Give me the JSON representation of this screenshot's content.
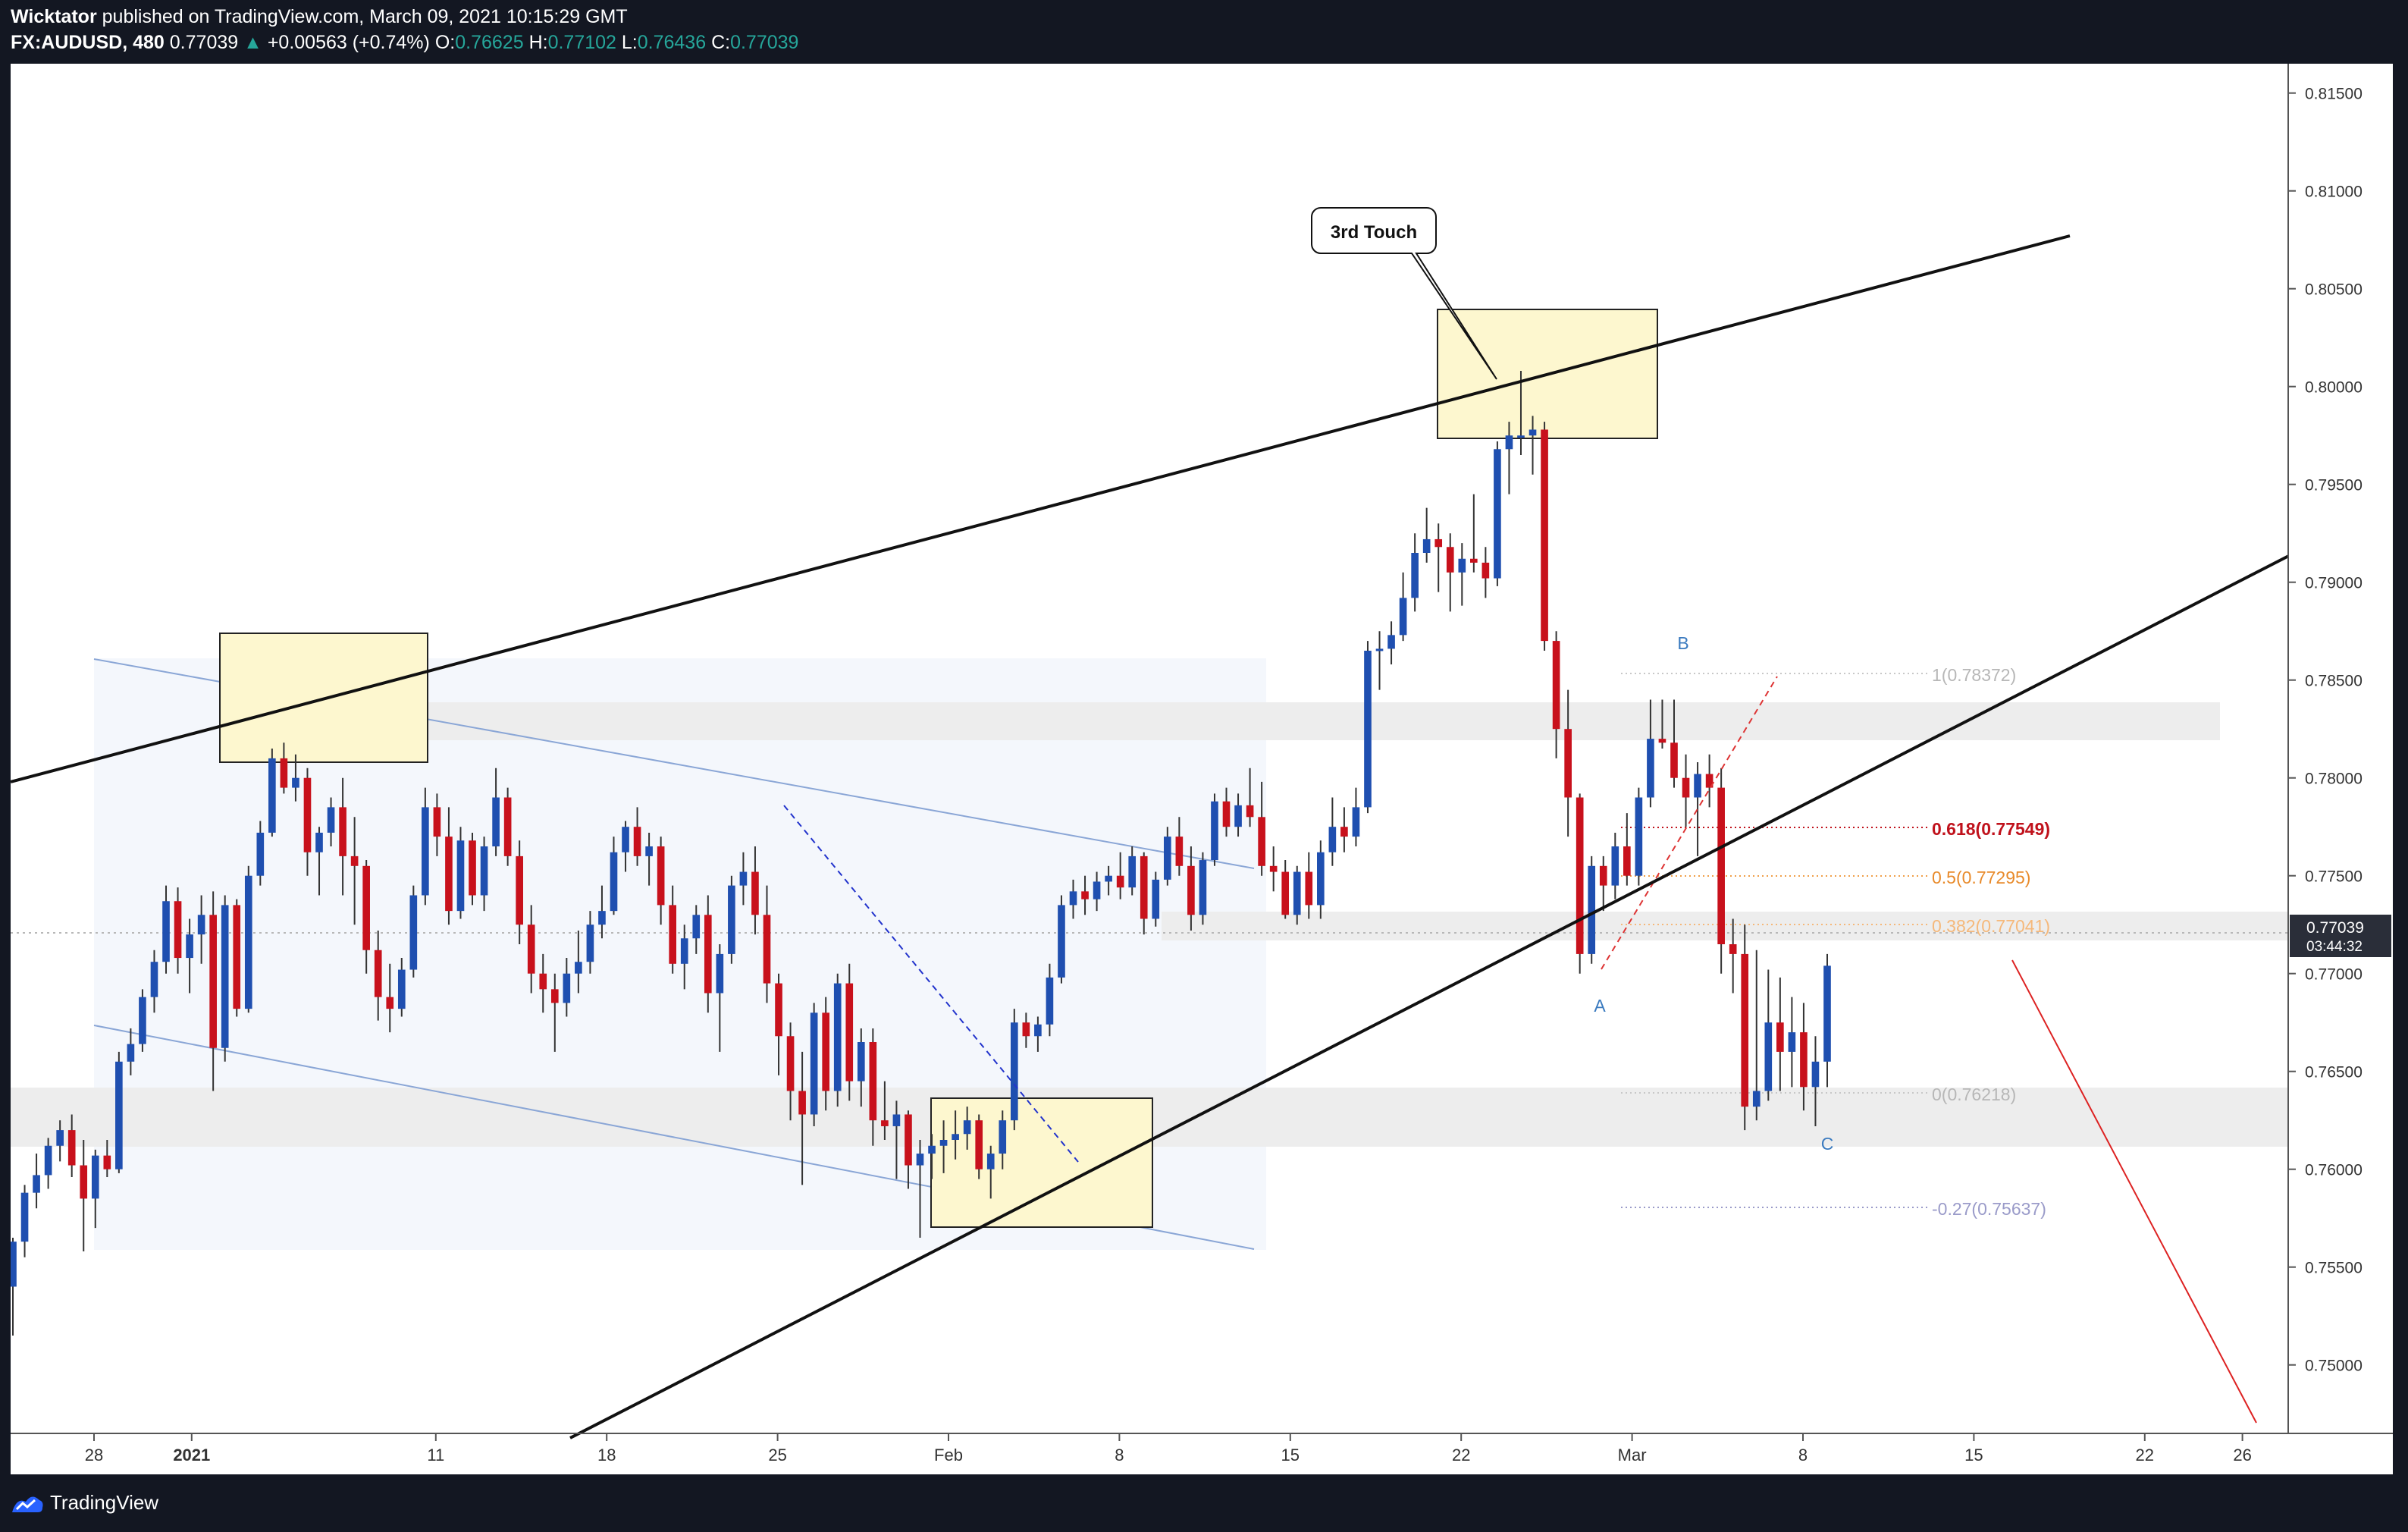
{
  "header": {
    "author": "Wicktator",
    "published": "published on TradingView.com, March 09, 2021 10:15:29 GMT",
    "symbol": "FX:AUDUSD, 480",
    "last": "0.77039",
    "arrow": "▲",
    "change": "+0.00563 (+0.74%)",
    "o_label": "O:",
    "o_value": "0.76625",
    "h_label": "H:",
    "h_value": "0.77102",
    "l_label": "L:",
    "l_value": "0.76436",
    "c_label": "C:",
    "c_value": "0.77039"
  },
  "footer": {
    "brand": "TradingView"
  },
  "colors": {
    "bull": "#1f4fb0",
    "bear": "#c8111c",
    "background": "#ffffff",
    "frame": "#131722",
    "zone": "#fdf7cf",
    "fib_618": "#c0121c",
    "fib_05": "#f0a04a",
    "fib_0382": "#f5b87a",
    "fib_neutral": "#b7b7b7",
    "fib_ext": "#9a9bc9",
    "wave_label": "#3a7abf"
  },
  "chart_data": {
    "type": "candlestick",
    "symbol": "FX:AUDUSD",
    "interval": "480",
    "y_range": [
      0.7465,
      0.8165
    ],
    "y_ticks": [
      "0.75000",
      "0.75500",
      "0.76000",
      "0.76500",
      "0.77000",
      "0.77500",
      "0.78000",
      "0.78500",
      "0.79000",
      "0.79500",
      "0.80000",
      "0.80500",
      "0.81000",
      "0.81500"
    ],
    "x_ticks": [
      {
        "label": "28",
        "date": "2020-12-28"
      },
      {
        "label": "2021",
        "date": "2021-01-01"
      },
      {
        "label": "11",
        "date": "2021-01-11"
      },
      {
        "label": "18",
        "date": "2021-01-18"
      },
      {
        "label": "25",
        "date": "2021-01-25"
      },
      {
        "label": "Feb",
        "date": "2021-02-01"
      },
      {
        "label": "8",
        "date": "2021-02-08"
      },
      {
        "label": "15",
        "date": "2021-02-15"
      },
      {
        "label": "22",
        "date": "2021-02-22"
      },
      {
        "label": "Mar",
        "date": "2021-03-01"
      },
      {
        "label": "8",
        "date": "2021-03-08"
      },
      {
        "label": "15",
        "date": "2021-03-15"
      },
      {
        "label": "22",
        "date": "2021-03-22"
      },
      {
        "label": "26",
        "date": "2021-03-26"
      }
    ],
    "last_price": "0.77039",
    "countdown": "03:44:32",
    "annotations": {
      "callout": "3rd Touch",
      "waves": [
        "A",
        "B",
        "C"
      ]
    },
    "fib_levels": [
      {
        "label": "1(0.78372)",
        "price": 0.78372
      },
      {
        "label": "0.618(0.77549)",
        "price": 0.77549
      },
      {
        "label": "0.5(0.77295)",
        "price": 0.77295
      },
      {
        "label": "0.382(0.77041)",
        "price": 0.77041
      },
      {
        "label": "0(0.76218)",
        "price": 0.76218
      },
      {
        "label": "-0.27(0.75637)",
        "price": 0.75637
      }
    ],
    "candles": [
      {
        "o": 0.754,
        "h": 0.7565,
        "l": 0.7515,
        "c": 0.7563
      },
      {
        "o": 0.7563,
        "h": 0.7592,
        "l": 0.7555,
        "c": 0.7588
      },
      {
        "o": 0.7588,
        "h": 0.7608,
        "l": 0.758,
        "c": 0.7597
      },
      {
        "o": 0.7597,
        "h": 0.7616,
        "l": 0.759,
        "c": 0.7612
      },
      {
        "o": 0.7612,
        "h": 0.7625,
        "l": 0.7604,
        "c": 0.762
      },
      {
        "o": 0.762,
        "h": 0.7628,
        "l": 0.7596,
        "c": 0.7602
      },
      {
        "o": 0.7602,
        "h": 0.7615,
        "l": 0.7558,
        "c": 0.7585
      },
      {
        "o": 0.7585,
        "h": 0.761,
        "l": 0.757,
        "c": 0.7607
      },
      {
        "o": 0.7607,
        "h": 0.7615,
        "l": 0.7596,
        "c": 0.76
      },
      {
        "o": 0.76,
        "h": 0.766,
        "l": 0.7598,
        "c": 0.7655
      },
      {
        "o": 0.7655,
        "h": 0.7672,
        "l": 0.7648,
        "c": 0.7664
      },
      {
        "o": 0.7664,
        "h": 0.7692,
        "l": 0.766,
        "c": 0.7688
      },
      {
        "o": 0.7688,
        "h": 0.7712,
        "l": 0.768,
        "c": 0.7706
      },
      {
        "o": 0.7706,
        "h": 0.7745,
        "l": 0.77,
        "c": 0.7737
      },
      {
        "o": 0.7737,
        "h": 0.7744,
        "l": 0.77,
        "c": 0.7708
      },
      {
        "o": 0.7708,
        "h": 0.7728,
        "l": 0.769,
        "c": 0.772
      },
      {
        "o": 0.772,
        "h": 0.774,
        "l": 0.7705,
        "c": 0.773
      },
      {
        "o": 0.773,
        "h": 0.7742,
        "l": 0.764,
        "c": 0.7662
      },
      {
        "o": 0.7662,
        "h": 0.774,
        "l": 0.7655,
        "c": 0.7735
      },
      {
        "o": 0.7735,
        "h": 0.7738,
        "l": 0.7678,
        "c": 0.7682
      },
      {
        "o": 0.7682,
        "h": 0.7755,
        "l": 0.768,
        "c": 0.775
      },
      {
        "o": 0.775,
        "h": 0.7778,
        "l": 0.7745,
        "c": 0.7772
      },
      {
        "o": 0.7772,
        "h": 0.7815,
        "l": 0.777,
        "c": 0.781
      },
      {
        "o": 0.781,
        "h": 0.7818,
        "l": 0.7792,
        "c": 0.7795
      },
      {
        "o": 0.7795,
        "h": 0.7812,
        "l": 0.7788,
        "c": 0.78
      },
      {
        "o": 0.78,
        "h": 0.7805,
        "l": 0.775,
        "c": 0.7762
      },
      {
        "o": 0.7762,
        "h": 0.7775,
        "l": 0.774,
        "c": 0.7772
      },
      {
        "o": 0.7772,
        "h": 0.779,
        "l": 0.7765,
        "c": 0.7785
      },
      {
        "o": 0.7785,
        "h": 0.78,
        "l": 0.774,
        "c": 0.776
      },
      {
        "o": 0.776,
        "h": 0.778,
        "l": 0.7725,
        "c": 0.7755
      },
      {
        "o": 0.7755,
        "h": 0.7758,
        "l": 0.77,
        "c": 0.7712
      },
      {
        "o": 0.7712,
        "h": 0.7722,
        "l": 0.7676,
        "c": 0.7688
      },
      {
        "o": 0.7688,
        "h": 0.7705,
        "l": 0.767,
        "c": 0.7682
      },
      {
        "o": 0.7682,
        "h": 0.7708,
        "l": 0.7678,
        "c": 0.7702
      },
      {
        "o": 0.7702,
        "h": 0.7745,
        "l": 0.7698,
        "c": 0.774
      },
      {
        "o": 0.774,
        "h": 0.7795,
        "l": 0.7735,
        "c": 0.7785
      },
      {
        "o": 0.7785,
        "h": 0.7792,
        "l": 0.776,
        "c": 0.777
      },
      {
        "o": 0.777,
        "h": 0.7785,
        "l": 0.7725,
        "c": 0.7732
      },
      {
        "o": 0.7732,
        "h": 0.7775,
        "l": 0.7728,
        "c": 0.7768
      },
      {
        "o": 0.7768,
        "h": 0.7772,
        "l": 0.7735,
        "c": 0.774
      },
      {
        "o": 0.774,
        "h": 0.777,
        "l": 0.7732,
        "c": 0.7765
      },
      {
        "o": 0.7765,
        "h": 0.7805,
        "l": 0.776,
        "c": 0.779
      },
      {
        "o": 0.779,
        "h": 0.7795,
        "l": 0.7755,
        "c": 0.776
      },
      {
        "o": 0.776,
        "h": 0.7768,
        "l": 0.7715,
        "c": 0.7725
      },
      {
        "o": 0.7725,
        "h": 0.7735,
        "l": 0.769,
        "c": 0.77
      },
      {
        "o": 0.77,
        "h": 0.771,
        "l": 0.768,
        "c": 0.7692
      },
      {
        "o": 0.7692,
        "h": 0.77,
        "l": 0.766,
        "c": 0.7685
      },
      {
        "o": 0.7685,
        "h": 0.7708,
        "l": 0.7678,
        "c": 0.77
      },
      {
        "o": 0.77,
        "h": 0.7722,
        "l": 0.769,
        "c": 0.7706
      },
      {
        "o": 0.7706,
        "h": 0.7732,
        "l": 0.77,
        "c": 0.7725
      },
      {
        "o": 0.7725,
        "h": 0.7745,
        "l": 0.7718,
        "c": 0.7732
      },
      {
        "o": 0.7732,
        "h": 0.777,
        "l": 0.773,
        "c": 0.7762
      },
      {
        "o": 0.7762,
        "h": 0.7778,
        "l": 0.7752,
        "c": 0.7775
      },
      {
        "o": 0.7775,
        "h": 0.7785,
        "l": 0.7755,
        "c": 0.776
      },
      {
        "o": 0.776,
        "h": 0.7772,
        "l": 0.7745,
        "c": 0.7765
      },
      {
        "o": 0.7765,
        "h": 0.777,
        "l": 0.7725,
        "c": 0.7735
      },
      {
        "o": 0.7735,
        "h": 0.7745,
        "l": 0.77,
        "c": 0.7705
      },
      {
        "o": 0.7705,
        "h": 0.7725,
        "l": 0.7692,
        "c": 0.7718
      },
      {
        "o": 0.7718,
        "h": 0.7735,
        "l": 0.771,
        "c": 0.773
      },
      {
        "o": 0.773,
        "h": 0.774,
        "l": 0.768,
        "c": 0.769
      },
      {
        "o": 0.769,
        "h": 0.7715,
        "l": 0.766,
        "c": 0.771
      },
      {
        "o": 0.771,
        "h": 0.775,
        "l": 0.7705,
        "c": 0.7745
      },
      {
        "o": 0.7745,
        "h": 0.7762,
        "l": 0.7735,
        "c": 0.7752
      },
      {
        "o": 0.7752,
        "h": 0.7765,
        "l": 0.772,
        "c": 0.773
      },
      {
        "o": 0.773,
        "h": 0.7745,
        "l": 0.7685,
        "c": 0.7695
      },
      {
        "o": 0.7695,
        "h": 0.77,
        "l": 0.7648,
        "c": 0.7668
      },
      {
        "o": 0.7668,
        "h": 0.7675,
        "l": 0.7625,
        "c": 0.764
      },
      {
        "o": 0.764,
        "h": 0.766,
        "l": 0.7592,
        "c": 0.7628
      },
      {
        "o": 0.7628,
        "h": 0.7685,
        "l": 0.7622,
        "c": 0.768
      },
      {
        "o": 0.768,
        "h": 0.7688,
        "l": 0.763,
        "c": 0.764
      },
      {
        "o": 0.764,
        "h": 0.77,
        "l": 0.7632,
        "c": 0.7695
      },
      {
        "o": 0.7695,
        "h": 0.7705,
        "l": 0.7635,
        "c": 0.7645
      },
      {
        "o": 0.7645,
        "h": 0.7672,
        "l": 0.7632,
        "c": 0.7665
      },
      {
        "o": 0.7665,
        "h": 0.7672,
        "l": 0.7612,
        "c": 0.7625
      },
      {
        "o": 0.7625,
        "h": 0.7645,
        "l": 0.7615,
        "c": 0.7622
      },
      {
        "o": 0.7622,
        "h": 0.7635,
        "l": 0.7595,
        "c": 0.7628
      },
      {
        "o": 0.7628,
        "h": 0.763,
        "l": 0.759,
        "c": 0.7602
      },
      {
        "o": 0.7602,
        "h": 0.7615,
        "l": 0.7565,
        "c": 0.7608
      },
      {
        "o": 0.7608,
        "h": 0.7618,
        "l": 0.7595,
        "c": 0.7612
      },
      {
        "o": 0.7612,
        "h": 0.7625,
        "l": 0.7598,
        "c": 0.7615
      },
      {
        "o": 0.7615,
        "h": 0.763,
        "l": 0.7605,
        "c": 0.7618
      },
      {
        "o": 0.7618,
        "h": 0.7632,
        "l": 0.761,
        "c": 0.7625
      },
      {
        "o": 0.7625,
        "h": 0.7628,
        "l": 0.7595,
        "c": 0.76
      },
      {
        "o": 0.76,
        "h": 0.7612,
        "l": 0.7585,
        "c": 0.7608
      },
      {
        "o": 0.7608,
        "h": 0.763,
        "l": 0.76,
        "c": 0.7625
      },
      {
        "o": 0.7625,
        "h": 0.7682,
        "l": 0.762,
        "c": 0.7675
      },
      {
        "o": 0.7675,
        "h": 0.768,
        "l": 0.7662,
        "c": 0.7668
      },
      {
        "o": 0.7668,
        "h": 0.7678,
        "l": 0.766,
        "c": 0.7674
      },
      {
        "o": 0.7674,
        "h": 0.7705,
        "l": 0.7668,
        "c": 0.7698
      },
      {
        "o": 0.7698,
        "h": 0.774,
        "l": 0.7695,
        "c": 0.7735
      },
      {
        "o": 0.7735,
        "h": 0.7748,
        "l": 0.7728,
        "c": 0.7742
      },
      {
        "o": 0.7742,
        "h": 0.775,
        "l": 0.773,
        "c": 0.7738
      },
      {
        "o": 0.7738,
        "h": 0.7752,
        "l": 0.7732,
        "c": 0.7747
      },
      {
        "o": 0.7747,
        "h": 0.7755,
        "l": 0.774,
        "c": 0.775
      },
      {
        "o": 0.775,
        "h": 0.7762,
        "l": 0.7738,
        "c": 0.7744
      },
      {
        "o": 0.7744,
        "h": 0.7765,
        "l": 0.774,
        "c": 0.776
      },
      {
        "o": 0.776,
        "h": 0.7762,
        "l": 0.772,
        "c": 0.7728
      },
      {
        "o": 0.7728,
        "h": 0.7752,
        "l": 0.7724,
        "c": 0.7748
      },
      {
        "o": 0.7748,
        "h": 0.7775,
        "l": 0.7745,
        "c": 0.777
      },
      {
        "o": 0.777,
        "h": 0.778,
        "l": 0.775,
        "c": 0.7755
      },
      {
        "o": 0.7755,
        "h": 0.7765,
        "l": 0.7722,
        "c": 0.773
      },
      {
        "o": 0.773,
        "h": 0.7762,
        "l": 0.7725,
        "c": 0.7758
      },
      {
        "o": 0.7758,
        "h": 0.7792,
        "l": 0.7755,
        "c": 0.7788
      },
      {
        "o": 0.7788,
        "h": 0.7795,
        "l": 0.777,
        "c": 0.7775
      },
      {
        "o": 0.7775,
        "h": 0.7792,
        "l": 0.777,
        "c": 0.7786
      },
      {
        "o": 0.7786,
        "h": 0.7805,
        "l": 0.7775,
        "c": 0.778
      },
      {
        "o": 0.778,
        "h": 0.7798,
        "l": 0.775,
        "c": 0.7755
      },
      {
        "o": 0.7755,
        "h": 0.7765,
        "l": 0.7742,
        "c": 0.7752
      },
      {
        "o": 0.7752,
        "h": 0.7758,
        "l": 0.7728,
        "c": 0.773
      },
      {
        "o": 0.773,
        "h": 0.7755,
        "l": 0.7725,
        "c": 0.7752
      },
      {
        "o": 0.7752,
        "h": 0.7762,
        "l": 0.7728,
        "c": 0.7735
      },
      {
        "o": 0.7735,
        "h": 0.7768,
        "l": 0.7728,
        "c": 0.7762
      },
      {
        "o": 0.7762,
        "h": 0.779,
        "l": 0.7755,
        "c": 0.7775
      },
      {
        "o": 0.7775,
        "h": 0.7785,
        "l": 0.7762,
        "c": 0.777
      },
      {
        "o": 0.777,
        "h": 0.7795,
        "l": 0.7765,
        "c": 0.7785
      },
      {
        "o": 0.7785,
        "h": 0.787,
        "l": 0.7782,
        "c": 0.7865
      },
      {
        "o": 0.7865,
        "h": 0.7875,
        "l": 0.7845,
        "c": 0.7866
      },
      {
        "o": 0.7866,
        "h": 0.788,
        "l": 0.7858,
        "c": 0.7873
      },
      {
        "o": 0.7873,
        "h": 0.7905,
        "l": 0.787,
        "c": 0.7892
      },
      {
        "o": 0.7892,
        "h": 0.7925,
        "l": 0.7885,
        "c": 0.7915
      },
      {
        "o": 0.7915,
        "h": 0.7938,
        "l": 0.791,
        "c": 0.7922
      },
      {
        "o": 0.7922,
        "h": 0.793,
        "l": 0.7895,
        "c": 0.7918
      },
      {
        "o": 0.7918,
        "h": 0.7925,
        "l": 0.7885,
        "c": 0.7905
      },
      {
        "o": 0.7905,
        "h": 0.792,
        "l": 0.7888,
        "c": 0.7912
      },
      {
        "o": 0.7912,
        "h": 0.7945,
        "l": 0.7905,
        "c": 0.791
      },
      {
        "o": 0.791,
        "h": 0.7918,
        "l": 0.7892,
        "c": 0.7902
      },
      {
        "o": 0.7902,
        "h": 0.7972,
        "l": 0.7898,
        "c": 0.7968
      },
      {
        "o": 0.7968,
        "h": 0.7982,
        "l": 0.7945,
        "c": 0.7975
      },
      {
        "o": 0.7975,
        "h": 0.8008,
        "l": 0.7965,
        "c": 0.7975
      },
      {
        "o": 0.7975,
        "h": 0.7985,
        "l": 0.7955,
        "c": 0.7978
      },
      {
        "o": 0.7978,
        "h": 0.7982,
        "l": 0.7865,
        "c": 0.787
      },
      {
        "o": 0.787,
        "h": 0.7875,
        "l": 0.781,
        "c": 0.7825
      },
      {
        "o": 0.7825,
        "h": 0.7845,
        "l": 0.777,
        "c": 0.779
      },
      {
        "o": 0.779,
        "h": 0.7792,
        "l": 0.77,
        "c": 0.771
      },
      {
        "o": 0.771,
        "h": 0.776,
        "l": 0.7705,
        "c": 0.7755
      },
      {
        "o": 0.7755,
        "h": 0.776,
        "l": 0.7732,
        "c": 0.7745
      },
      {
        "o": 0.7745,
        "h": 0.7772,
        "l": 0.7738,
        "c": 0.7765
      },
      {
        "o": 0.7765,
        "h": 0.7782,
        "l": 0.7745,
        "c": 0.775
      },
      {
        "o": 0.775,
        "h": 0.7795,
        "l": 0.7745,
        "c": 0.779
      },
      {
        "o": 0.779,
        "h": 0.784,
        "l": 0.7785,
        "c": 0.782
      },
      {
        "o": 0.782,
        "h": 0.784,
        "l": 0.7815,
        "c": 0.7818
      },
      {
        "o": 0.7818,
        "h": 0.784,
        "l": 0.7795,
        "c": 0.78
      },
      {
        "o": 0.78,
        "h": 0.7812,
        "l": 0.7775,
        "c": 0.779
      },
      {
        "o": 0.779,
        "h": 0.7808,
        "l": 0.776,
        "c": 0.7802
      },
      {
        "o": 0.7802,
        "h": 0.7812,
        "l": 0.7785,
        "c": 0.7795
      },
      {
        "o": 0.7795,
        "h": 0.7805,
        "l": 0.77,
        "c": 0.7715
      },
      {
        "o": 0.7715,
        "h": 0.7728,
        "l": 0.769,
        "c": 0.771
      },
      {
        "o": 0.771,
        "h": 0.7725,
        "l": 0.762,
        "c": 0.7632
      },
      {
        "o": 0.7632,
        "h": 0.7712,
        "l": 0.7625,
        "c": 0.764
      },
      {
        "o": 0.764,
        "h": 0.7702,
        "l": 0.7635,
        "c": 0.7675
      },
      {
        "o": 0.7675,
        "h": 0.7698,
        "l": 0.764,
        "c": 0.766
      },
      {
        "o": 0.766,
        "h": 0.7688,
        "l": 0.7642,
        "c": 0.767
      },
      {
        "o": 0.767,
        "h": 0.7685,
        "l": 0.763,
        "c": 0.7642
      },
      {
        "o": 0.7642,
        "h": 0.7668,
        "l": 0.7622,
        "c": 0.7655
      },
      {
        "o": 0.7655,
        "h": 0.771,
        "l": 0.7642,
        "c": 0.7704
      }
    ]
  }
}
